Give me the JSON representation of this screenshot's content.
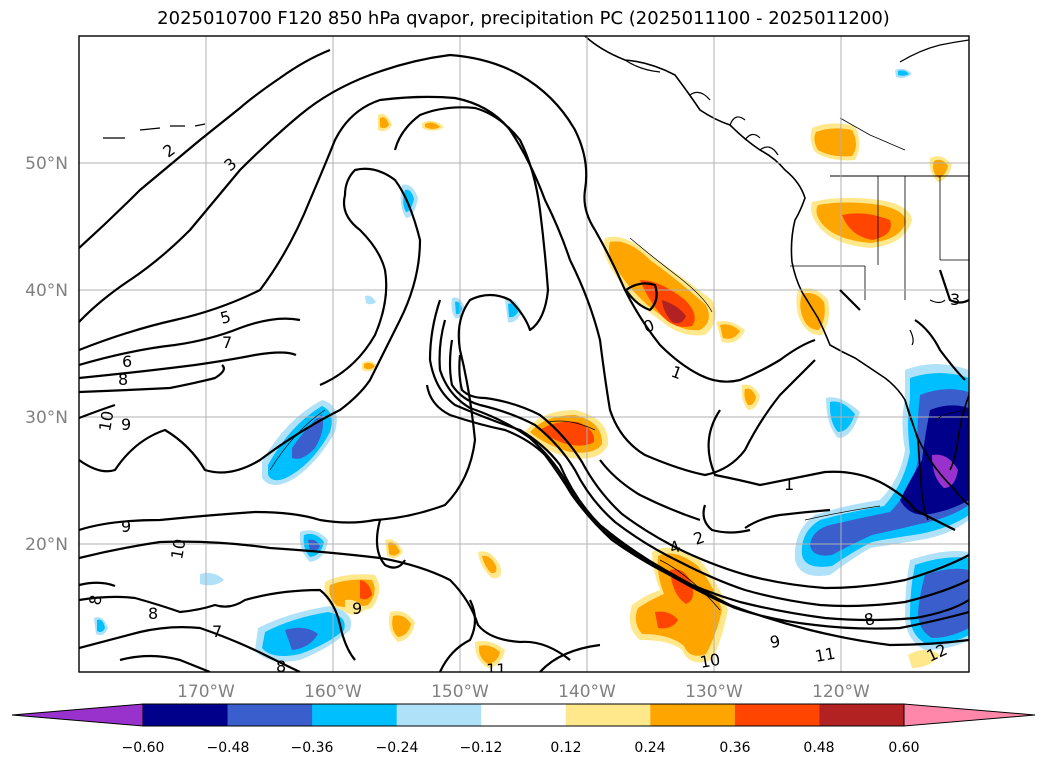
{
  "title": "2025010700 F120 850 hPa qvapor, precipitation PC (2025011100 - 2025011200)",
  "lat_labels": [
    "50°N",
    "40°N",
    "30°N",
    "20°N"
  ],
  "lon_labels": [
    "170°W",
    "160°W",
    "150°W",
    "140°W",
    "130°W",
    "120°W"
  ],
  "contour_labels": [
    "2",
    "3",
    "5",
    "7",
    "6",
    "8",
    "10",
    "9",
    "9",
    "10",
    "8",
    "8",
    "7",
    "8",
    "9",
    "0",
    "1",
    "1",
    "2",
    "4",
    "9",
    "10",
    "11",
    "8",
    "12",
    "3",
    "11"
  ],
  "colorbar": {
    "ticks": [
      "−0.60",
      "−0.48",
      "−0.36",
      "−0.24",
      "−0.12",
      "0.12",
      "0.24",
      "0.36",
      "0.48",
      "0.60"
    ],
    "colors": [
      "#9932cc",
      "#00008b",
      "#3a5fcd",
      "#00bfff",
      "#afe1f8",
      "#ffffff",
      "#ffe88c",
      "#ffa500",
      "#ff4500",
      "#b22222",
      "#ff88aa"
    ]
  },
  "shading_colors": {
    "neg1": "#afe1f8",
    "neg2": "#00bfff",
    "neg3": "#3a5fcd",
    "neg4": "#00008b",
    "neg5": "#9932cc",
    "pos1": "#ffe88c",
    "pos2": "#ffa500",
    "pos3": "#ff4500",
    "pos4": "#b22222"
  }
}
